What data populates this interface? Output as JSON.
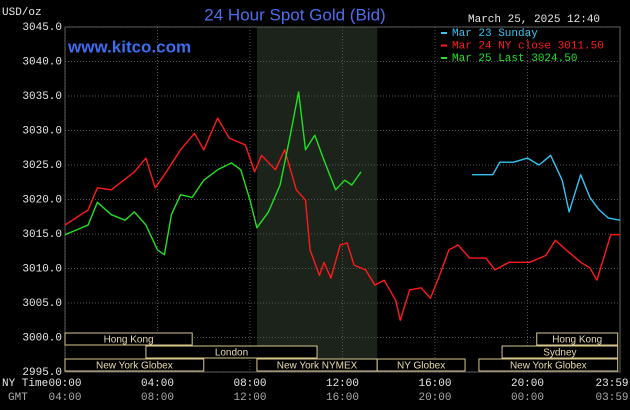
{
  "chart_data": {
    "type": "line",
    "title": "24 Hour Spot Gold (Bid)",
    "y_label": "USD/oz",
    "watermark": "www.kitco.com",
    "timestamp": "March 25, 2025 12:40",
    "x_label": "NY Time",
    "x2_label": "GMT",
    "xlim": [
      0,
      24
    ],
    "ylim": [
      2995,
      3045
    ],
    "yticks": [
      {
        "value": 2995,
        "label": "2995.0"
      },
      {
        "value": 3000,
        "label": "3000.0"
      },
      {
        "value": 3005,
        "label": "3005.0"
      },
      {
        "value": 3010,
        "label": "3010.0"
      },
      {
        "value": 3015,
        "label": "3015.0"
      },
      {
        "value": 3020,
        "label": "3020.0"
      },
      {
        "value": 3025,
        "label": "3025.0"
      },
      {
        "value": 3030,
        "label": "3030.0"
      },
      {
        "value": 3035,
        "label": "3035.0"
      },
      {
        "value": 3040,
        "label": "3040.0"
      },
      {
        "value": 3045,
        "label": "3045.0"
      }
    ],
    "xticks": [
      {
        "value": 0,
        "label": "00:00"
      },
      {
        "value": 4,
        "label": "04:00"
      },
      {
        "value": 8,
        "label": "08:00"
      },
      {
        "value": 12,
        "label": "12:00"
      },
      {
        "value": 16,
        "label": "16:00"
      },
      {
        "value": 20,
        "label": "20:00"
      },
      {
        "value": 23.98,
        "label": "23:59"
      }
    ],
    "x2ticks": [
      {
        "value": 0,
        "label": "04:00"
      },
      {
        "value": 4,
        "label": "08:00"
      },
      {
        "value": 8,
        "label": "12:00"
      },
      {
        "value": 12,
        "label": "16:00"
      },
      {
        "value": 16,
        "label": "20:00"
      },
      {
        "value": 20,
        "label": "00:00"
      },
      {
        "value": 23.98,
        "label": "03:59"
      }
    ],
    "grid": true,
    "series": [
      {
        "name": "Mar 23 Sunday",
        "color": "#33c4f2",
        "x": [
          17.6,
          18.5,
          18.8,
          19.4,
          20.0,
          20.5,
          21.0,
          21.5,
          21.8,
          22.3,
          22.7,
          23.1,
          23.5,
          24.0
        ],
        "values": [
          3023.6,
          3023.6,
          3025.4,
          3025.4,
          3026.0,
          3025.0,
          3026.4,
          3022.8,
          3018.2,
          3023.6,
          3020.3,
          3018.5,
          3017.3,
          3017.0
        ]
      },
      {
        "name": "Mar 24 NY close 3011.50",
        "color": "#ff1a1a",
        "x": [
          0,
          1.0,
          1.4,
          2.0,
          3.0,
          3.5,
          3.9,
          4.3,
          5.0,
          5.6,
          6.0,
          6.6,
          7.1,
          7.8,
          8.2,
          8.5,
          9.1,
          9.5,
          10.0,
          10.4,
          10.6,
          11.0,
          11.2,
          11.5,
          11.9,
          12.2,
          12.5,
          13.0,
          13.4,
          13.8,
          14.3,
          14.5,
          14.9,
          15.4,
          15.8,
          16.2,
          16.6,
          17.0,
          17.5,
          18.2,
          18.6,
          19.2,
          20.1,
          20.8,
          21.2,
          21.6,
          22.3,
          22.7,
          23.0,
          23.6,
          24.0
        ],
        "values": [
          3016.3,
          3018.5,
          3021.7,
          3021.4,
          3024.0,
          3026.0,
          3021.7,
          3023.6,
          3027.2,
          3029.6,
          3027.2,
          3031.8,
          3028.9,
          3027.9,
          3024.0,
          3026.4,
          3024.3,
          3027.2,
          3021.4,
          3019.9,
          3012.7,
          3009.0,
          3010.9,
          3008.6,
          3013.4,
          3013.7,
          3010.5,
          3009.8,
          3007.6,
          3008.3,
          3005.4,
          3002.5,
          3006.9,
          3007.2,
          3005.7,
          3009.0,
          3012.7,
          3013.4,
          3011.5,
          3011.5,
          3009.8,
          3010.9,
          3010.9,
          3011.9,
          3014.1,
          3012.9,
          3010.9,
          3010.1,
          3008.3,
          3014.9,
          3014.9
        ]
      },
      {
        "name": "Mar 25 Last 3024.50",
        "color": "#22e022",
        "x": [
          0,
          0.5,
          1.0,
          1.4,
          2.0,
          2.6,
          3.0,
          3.5,
          4.0,
          4.3,
          4.6,
          5.0,
          5.5,
          6.0,
          6.6,
          7.2,
          7.6,
          8.0,
          8.3,
          8.8,
          9.3,
          9.7,
          10.1,
          10.4,
          10.8,
          11.2,
          11.7,
          12.1,
          12.4,
          12.8
        ],
        "values": [
          3014.9,
          3015.6,
          3016.3,
          3019.6,
          3017.8,
          3017.0,
          3018.2,
          3016.3,
          3012.7,
          3012.0,
          3017.8,
          3020.7,
          3020.3,
          3022.8,
          3024.3,
          3025.3,
          3024.3,
          3019.9,
          3015.9,
          3018.2,
          3022.1,
          3028.6,
          3035.6,
          3027.2,
          3029.3,
          3025.7,
          3021.4,
          3022.8,
          3022.1,
          3024.0
        ]
      }
    ],
    "sessions": [
      {
        "label": "Hong Kong",
        "start": 0,
        "end": 5.5
      },
      {
        "label": "Hong Kong",
        "start": 20.4,
        "end": 23.9
      },
      {
        "label": "London",
        "start": 3.5,
        "end": 10.9
      },
      {
        "label": "Sydney",
        "start": 18.9,
        "end": 23.9
      },
      {
        "label": "New York Globex",
        "start": 0,
        "end": 6.0
      },
      {
        "label": "New York NYMEX",
        "start": 8.3,
        "end": 13.5
      },
      {
        "label": "NY Globex",
        "start": 13.5,
        "end": 17.3
      },
      {
        "label": "New York Globex",
        "start": 17.9,
        "end": 23.9
      }
    ]
  }
}
